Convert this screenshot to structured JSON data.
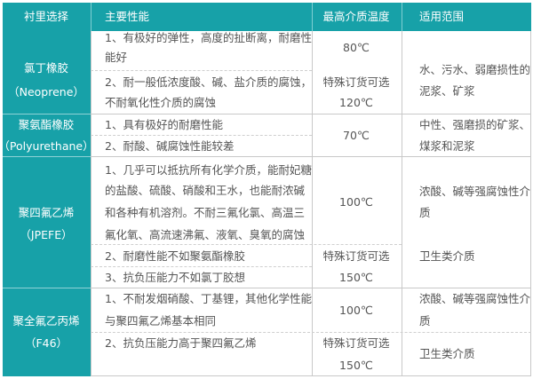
{
  "colors": {
    "header_bg": "#17a1a8",
    "text": "#555555",
    "border": "#c8c8c8"
  },
  "headers": [
    "衬里选择",
    "主要性能",
    "最高介质温度",
    "适用范围"
  ],
  "rows": [
    {
      "lining": [
        "氯丁橡胶",
        "（Neoprene）"
      ],
      "props": [
        "1、有极好的弹性，高度的扯断离，耐磨性",
        "能好",
        "2、耐一般低浓度酸、碱、盐介质的腐蚀，",
        "不耐氧化性介质的腐蚀"
      ],
      "temp": [
        "80℃",
        "特殊订货可选",
        "120℃"
      ],
      "scope": [
        "水、污水、弱磨损性的",
        "泥浆、矿浆"
      ]
    },
    {
      "lining": [
        "聚氨酯橡胶",
        "（Polyurethane）"
      ],
      "props": [
        "1、具有极好的耐磨性能",
        "2、耐酸、碱腐蚀性能较差"
      ],
      "temp": [
        "70℃"
      ],
      "scope": [
        "中性、强磨损的矿浆、",
        "煤浆和泥浆"
      ]
    },
    {
      "lining": [
        "聚四氟乙烯",
        "（JPEFE）"
      ],
      "props": [
        "1、几乎可以抵抗所有化学介质，能耐妃糖",
        "的盐酸、硫酸、硝酸和王水，也能耐浓碱",
        "和各种有机溶剂。不耐三氟化氯、高温三",
        "氟化氧、高流速沸氟、液氧、臭氧的腐蚀",
        "2、耐磨性能不如聚氨酯橡胶",
        "3、抗负压能力不如氯丁胶想"
      ],
      "temp": [
        "100℃",
        "特殊订货可选",
        "150℃"
      ],
      "scope": [
        "浓酸、碱等强腐蚀性介",
        "质",
        "卫生类介质"
      ]
    },
    {
      "lining": [
        "聚全氟乙丙烯",
        "（F46）"
      ],
      "props": [
        "1、不耐发烟硝酸、丁基锂，其他化学性能",
        "与聚四氟乙烯基本相同",
        "2、抗负压能力高于聚四氟乙烯"
      ],
      "temp": [
        "100℃",
        "特殊订货可选",
        "150℃"
      ],
      "scope": [
        "浓酸、碱等强腐蚀性介",
        "质",
        "卫生类介质"
      ]
    }
  ]
}
